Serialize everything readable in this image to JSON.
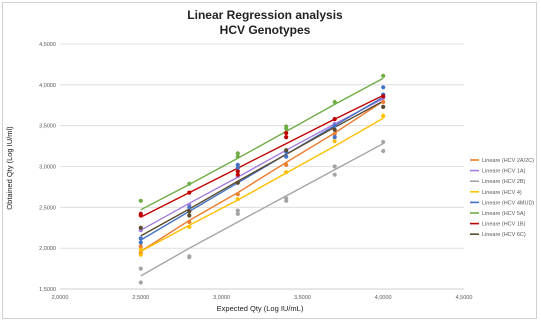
{
  "chart_data": {
    "type": "scatter",
    "title": "Linear Regression analysis",
    "subtitle": "HCV Genotypes",
    "xlabel": "Expected Qty (Log IU/mL)",
    "ylabel": "Obtained Qty (Log IU/ml)",
    "xlim": [
      2.0,
      4.5
    ],
    "ylim": [
      1.5,
      4.5
    ],
    "x_ticks": [
      {
        "value": 2.0,
        "label": "2,0000"
      },
      {
        "value": 2.5,
        "label": "2,5000"
      },
      {
        "value": 3.0,
        "label": "3,0000"
      },
      {
        "value": 3.5,
        "label": "3,5000"
      },
      {
        "value": 4.0,
        "label": "4,0000"
      },
      {
        "value": 4.5,
        "label": "4,5000"
      }
    ],
    "y_ticks": [
      {
        "value": 1.5,
        "label": "1,5000"
      },
      {
        "value": 2.0,
        "label": "2,0000"
      },
      {
        "value": 2.5,
        "label": "2,5000"
      },
      {
        "value": 3.0,
        "label": "3,0000"
      },
      {
        "value": 3.5,
        "label": "3,5000"
      },
      {
        "value": 4.0,
        "label": "4,0000"
      },
      {
        "value": 4.5,
        "label": "4,5000"
      }
    ],
    "grid": "horizontal",
    "legend_position": "right",
    "x": [
      2.5,
      2.8,
      3.1,
      3.4,
      3.7,
      4.0
    ],
    "series": [
      {
        "name": "Lineare (HCV 2A/2C)",
        "color": "#ed7d31",
        "y": [
          1.96,
          2.34,
          2.68,
          3.05,
          3.41,
          3.8
        ]
      },
      {
        "name": "Lineare (HCV 1A)",
        "color": "#a37de1",
        "y": [
          2.22,
          2.55,
          2.87,
          3.2,
          3.52,
          3.83
        ]
      },
      {
        "name": "Lineare (HCV 2B)",
        "color": "#a5a5a5",
        "y": [
          1.66,
          2.0,
          2.32,
          2.64,
          2.96,
          3.28
        ]
      },
      {
        "name": "Lineare (HCV 4)",
        "color": "#ffc000",
        "y": [
          1.96,
          2.28,
          2.59,
          2.92,
          3.25,
          3.59
        ]
      },
      {
        "name": "Lineare (HCV 4MUD)",
        "color": "#4472c4",
        "y": [
          2.1,
          2.45,
          2.8,
          3.15,
          3.5,
          3.85
        ]
      },
      {
        "name": "Lineare (HCV 5A)",
        "color": "#70ad47",
        "y": [
          2.47,
          2.78,
          3.1,
          3.43,
          3.76,
          4.08
        ]
      },
      {
        "name": "Lineare (HCV 1B)",
        "color": "#c00000",
        "y": [
          2.38,
          2.68,
          2.98,
          3.28,
          3.58,
          3.87
        ]
      },
      {
        "name": "Lineare (HCV 6C)",
        "color": "#5a4a2e",
        "y": [
          2.15,
          2.48,
          2.82,
          3.15,
          3.48,
          3.8
        ]
      }
    ],
    "points": [
      {
        "series": 0,
        "pts": [
          [
            2.5,
            1.94
          ],
          [
            2.5,
            2.02
          ],
          [
            2.8,
            2.32
          ],
          [
            3.1,
            2.66
          ],
          [
            3.4,
            3.02
          ],
          [
            3.7,
            3.4
          ],
          [
            4.0,
            3.79
          ]
        ]
      },
      {
        "series": 1,
        "pts": [
          [
            2.5,
            2.22
          ],
          [
            2.8,
            2.53
          ],
          [
            3.1,
            2.88
          ],
          [
            3.4,
            3.18
          ],
          [
            3.7,
            3.52
          ],
          [
            4.0,
            3.84
          ]
        ]
      },
      {
        "series": 2,
        "pts": [
          [
            2.5,
            1.58
          ],
          [
            2.5,
            1.75
          ],
          [
            2.8,
            1.89
          ],
          [
            2.8,
            1.9
          ],
          [
            3.1,
            2.42
          ],
          [
            3.1,
            2.46
          ],
          [
            3.4,
            2.58
          ],
          [
            3.4,
            2.61
          ],
          [
            3.7,
            2.9
          ],
          [
            3.7,
            3.0
          ],
          [
            4.0,
            3.19
          ],
          [
            4.0,
            3.3
          ]
        ]
      },
      {
        "series": 3,
        "pts": [
          [
            2.5,
            1.92
          ],
          [
            2.5,
            1.98
          ],
          [
            2.8,
            2.26
          ],
          [
            3.1,
            2.6
          ],
          [
            3.4,
            2.93
          ],
          [
            3.7,
            3.31
          ],
          [
            4.0,
            3.62
          ]
        ]
      },
      {
        "series": 4,
        "pts": [
          [
            2.5,
            2.07
          ],
          [
            2.5,
            2.12
          ],
          [
            2.8,
            2.5
          ],
          [
            3.1,
            2.98
          ],
          [
            3.1,
            3.02
          ],
          [
            3.4,
            3.12
          ],
          [
            3.4,
            3.18
          ],
          [
            3.7,
            3.36
          ],
          [
            3.7,
            3.5
          ],
          [
            4.0,
            3.88
          ],
          [
            4.0,
            3.97
          ]
        ]
      },
      {
        "series": 5,
        "pts": [
          [
            2.5,
            2.58
          ],
          [
            2.8,
            2.79
          ],
          [
            3.1,
            3.12
          ],
          [
            3.1,
            3.16
          ],
          [
            3.4,
            3.46
          ],
          [
            3.4,
            3.49
          ],
          [
            3.7,
            3.79
          ],
          [
            4.0,
            4.11
          ]
        ]
      },
      {
        "series": 6,
        "pts": [
          [
            2.5,
            2.4
          ],
          [
            2.5,
            2.42
          ],
          [
            2.8,
            2.68
          ],
          [
            3.1,
            2.9
          ],
          [
            3.1,
            2.94
          ],
          [
            3.4,
            3.36
          ],
          [
            3.4,
            3.41
          ],
          [
            3.7,
            3.58
          ],
          [
            4.0,
            3.86
          ]
        ]
      },
      {
        "series": 7,
        "pts": [
          [
            2.5,
            2.25
          ],
          [
            2.8,
            2.4
          ],
          [
            2.8,
            2.45
          ],
          [
            3.1,
            2.8
          ],
          [
            3.4,
            3.2
          ],
          [
            3.7,
            3.45
          ],
          [
            4.0,
            3.73
          ]
        ]
      }
    ]
  }
}
